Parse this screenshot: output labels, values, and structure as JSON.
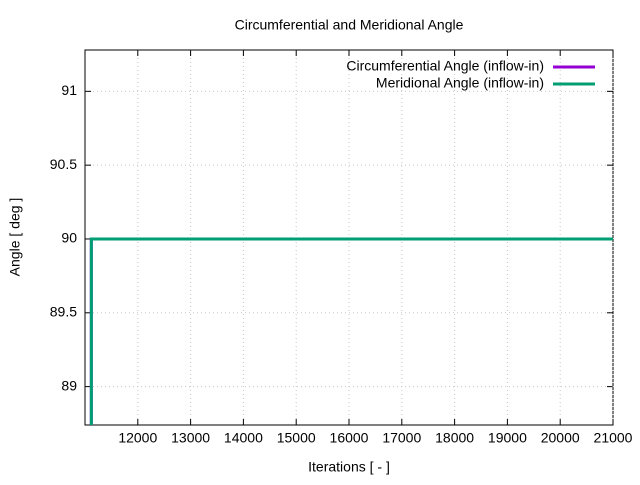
{
  "chart_data": {
    "type": "line",
    "title": "Circumferential and Meridional Angle",
    "x_label": "Iterations [ - ]",
    "y_label": "Angle [ deg ]",
    "x": [
      11120,
      11120,
      21000
    ],
    "series": [
      {
        "name": "Circumferential Angle (inflow-in)",
        "color": "#9400d3",
        "values": [
          88.74,
          90,
          90
        ]
      },
      {
        "name": "Meridional Angle (inflow-in)",
        "color": "#009e73",
        "values": [
          88.74,
          90,
          90
        ]
      }
    ],
    "xlim": [
      11000,
      21000
    ],
    "xticks": [
      12000,
      13000,
      14000,
      15000,
      16000,
      17000,
      18000,
      19000,
      20000,
      21000
    ],
    "ylim": [
      88.74,
      91.28
    ],
    "yticks": [
      89,
      89.5,
      90,
      90.5,
      91
    ],
    "grid": true,
    "legend": "top-right"
  }
}
